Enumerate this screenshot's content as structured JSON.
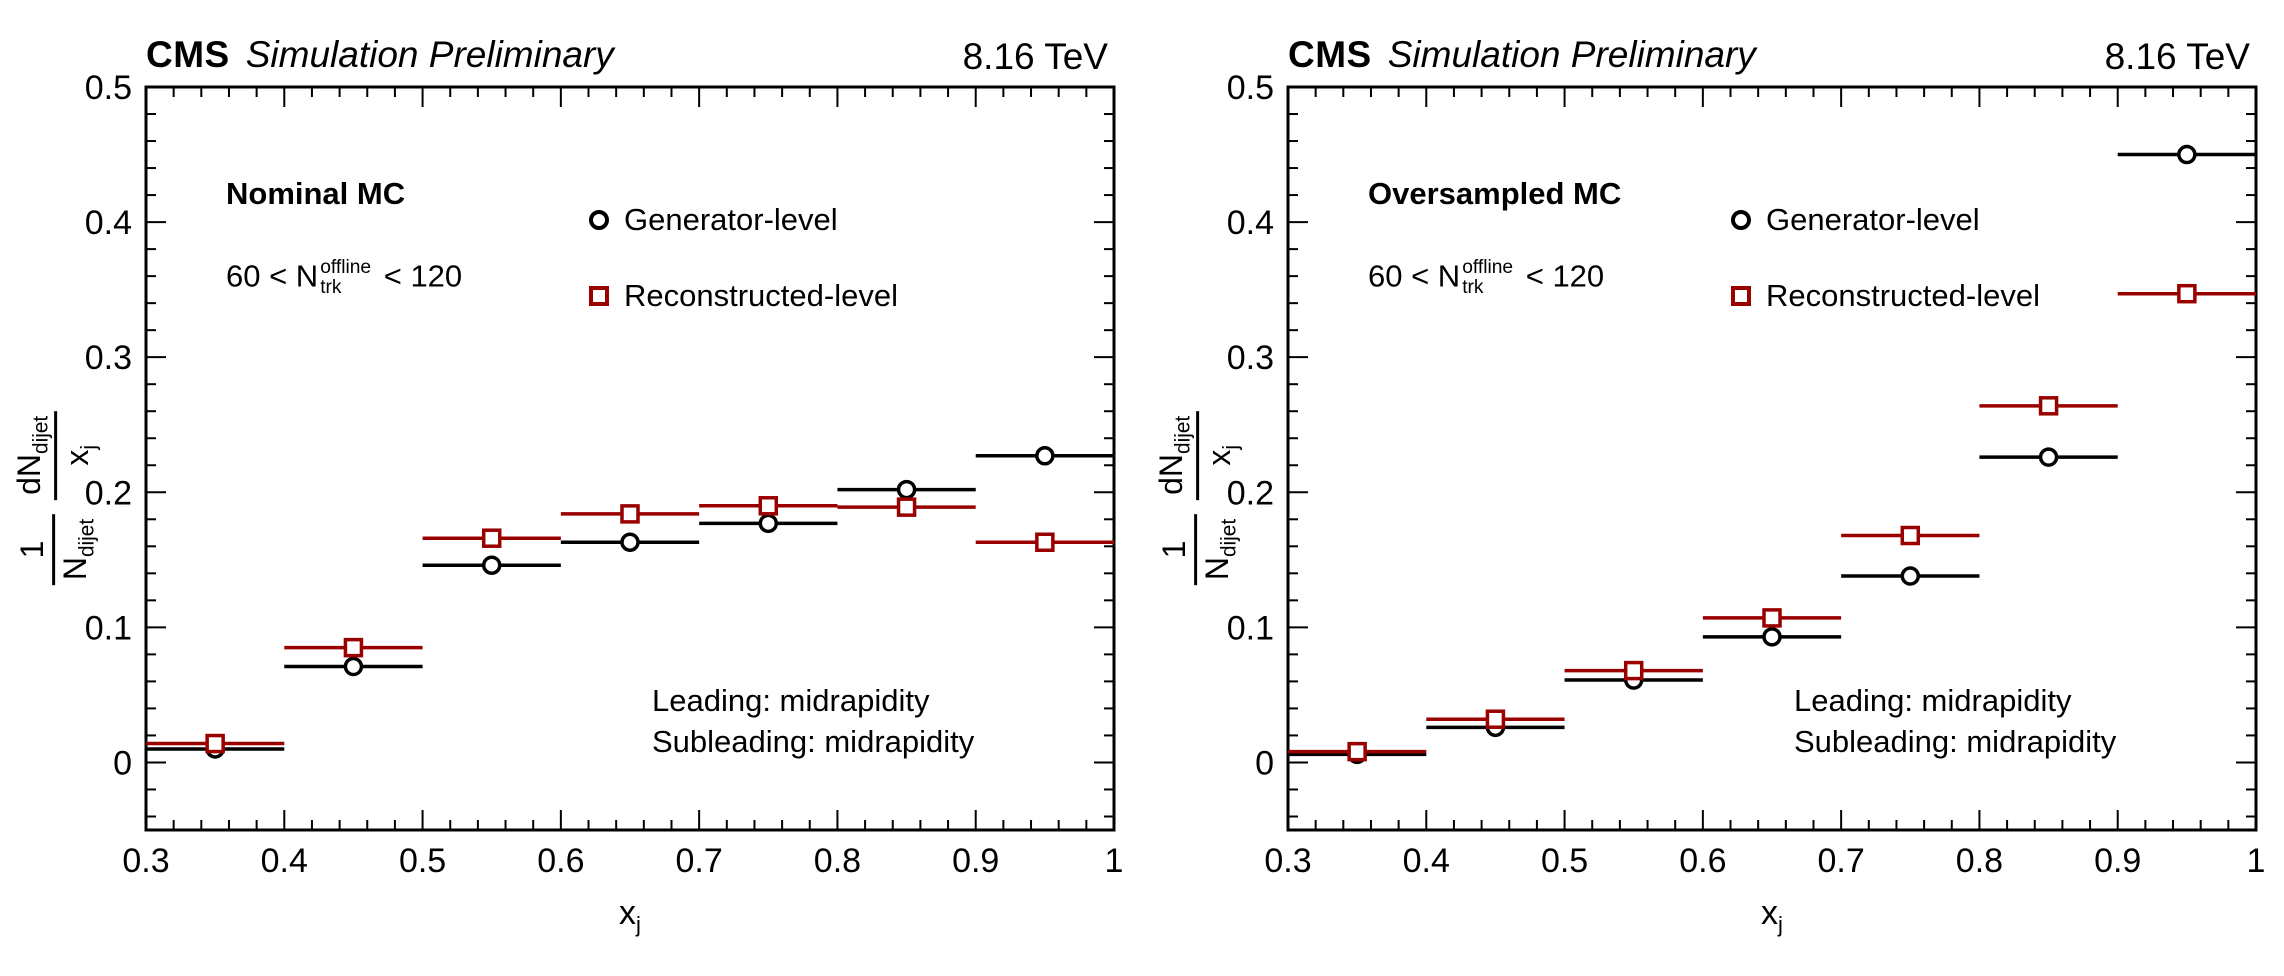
{
  "header": {
    "experiment": "CMS",
    "subtitle": "Simulation Preliminary",
    "energy": "8.16 TeV"
  },
  "axis": {
    "x_label": {
      "base": "x",
      "sub": "j"
    },
    "y_label": {
      "frac1_num": "1",
      "frac1_den_base": "N",
      "frac1_den_sub": "dijet",
      "frac2_num_base": "dN",
      "frac2_num_sub": "dijet",
      "frac2_den_base": "x",
      "frac2_den_sub": "j"
    }
  },
  "chart_data": [
    {
      "type": "scatter",
      "title": "Nominal MC",
      "dataset_label": "Nominal MC",
      "multiplicity_label": {
        "prefix": "60 < N",
        "sup": "offline",
        "sub": "trk",
        "suffix": " < 120"
      },
      "selection_labels": [
        "Leading: midrapidity",
        "Subleading: midrapidity"
      ],
      "xlabel": "x_j",
      "ylabel": "(1/N_dijet) dN_dijet / x_j",
      "xlim": [
        0.3,
        1
      ],
      "ylim": [
        -0.05,
        0.5
      ],
      "xticks": [
        0.3,
        0.4,
        0.5,
        0.6,
        0.7,
        0.8,
        0.9,
        1
      ],
      "xtick_labels": [
        "0.3",
        "0.4",
        "0.5",
        "0.6",
        "0.7",
        "0.8",
        "0.9",
        "1"
      ],
      "yticks": [
        0,
        0.1,
        0.2,
        0.3,
        0.4,
        0.5
      ],
      "ytick_labels": [
        "0",
        "0.1",
        "0.2",
        "0.3",
        "0.4",
        "0.5"
      ],
      "x_minor_step": 0.02,
      "y_minor_step": 0.02,
      "bin_width": 0.1,
      "grid": false,
      "legend_position": "inside top center",
      "x": [
        0.35,
        0.45,
        0.55,
        0.65,
        0.75,
        0.85,
        0.95
      ],
      "series": [
        {
          "name": "Generator-level",
          "marker": "circle",
          "color": "#000000",
          "values": [
            0.01,
            0.071,
            0.146,
            0.163,
            0.177,
            0.202,
            0.227
          ]
        },
        {
          "name": "Reconstructed-level",
          "marker": "square",
          "color": "#990000",
          "values": [
            0.014,
            0.085,
            0.166,
            0.184,
            0.19,
            0.189,
            0.163
          ]
        }
      ]
    },
    {
      "type": "scatter",
      "title": "Oversampled MC",
      "dataset_label": "Oversampled MC",
      "multiplicity_label": {
        "prefix": "60 < N",
        "sup": "offline",
        "sub": "trk",
        "suffix": " < 120"
      },
      "selection_labels": [
        "Leading: midrapidity",
        "Subleading: midrapidity"
      ],
      "xlabel": "x_j",
      "ylabel": "(1/N_dijet) dN_dijet / x_j",
      "xlim": [
        0.3,
        1
      ],
      "ylim": [
        -0.05,
        0.5
      ],
      "xticks": [
        0.3,
        0.4,
        0.5,
        0.6,
        0.7,
        0.8,
        0.9,
        1
      ],
      "xtick_labels": [
        "0.3",
        "0.4",
        "0.5",
        "0.6",
        "0.7",
        "0.8",
        "0.9",
        "1"
      ],
      "yticks": [
        0,
        0.1,
        0.2,
        0.3,
        0.4,
        0.5
      ],
      "ytick_labels": [
        "0",
        "0.1",
        "0.2",
        "0.3",
        "0.4",
        "0.5"
      ],
      "x_minor_step": 0.02,
      "y_minor_step": 0.02,
      "bin_width": 0.1,
      "grid": false,
      "legend_position": "inside top center",
      "x": [
        0.35,
        0.45,
        0.55,
        0.65,
        0.75,
        0.85,
        0.95
      ],
      "series": [
        {
          "name": "Generator-level",
          "marker": "circle",
          "color": "#000000",
          "values": [
            0.006,
            0.026,
            0.061,
            0.093,
            0.138,
            0.226,
            0.45
          ]
        },
        {
          "name": "Reconstructed-level",
          "marker": "square",
          "color": "#990000",
          "values": [
            0.008,
            0.032,
            0.068,
            0.107,
            0.168,
            0.264,
            0.347
          ]
        }
      ]
    }
  ]
}
